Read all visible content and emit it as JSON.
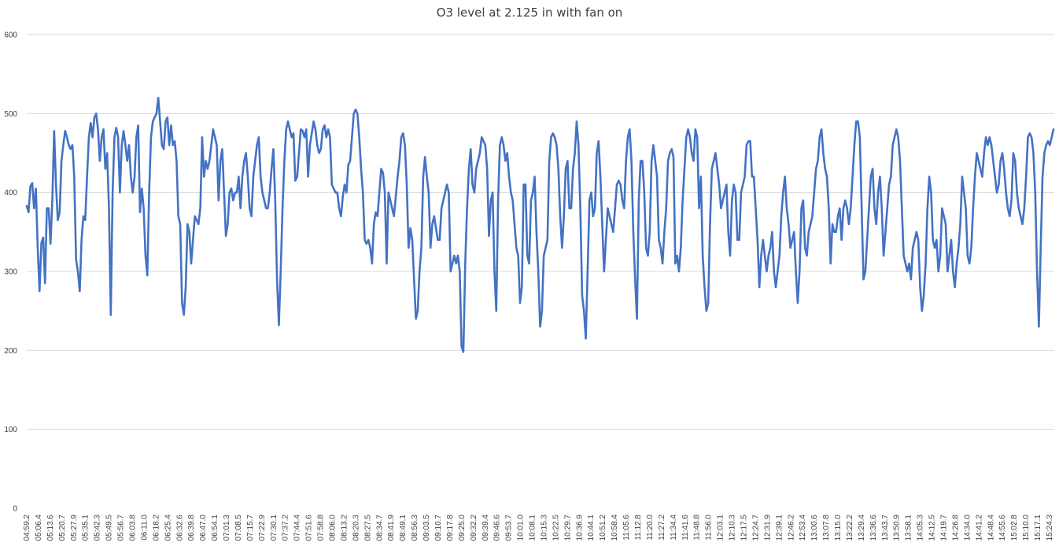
{
  "chart_data": {
    "type": "line",
    "title": "O3 level at 2.125 in with fan on",
    "ylim": [
      0,
      600
    ],
    "y_ticks": [
      "0",
      "100",
      "200",
      "300",
      "400",
      "500",
      "600"
    ],
    "grid": "horizontal",
    "legend": "none",
    "colors": {
      "series": "#4472c4",
      "grid": "#d9d9d9",
      "text": "#404040"
    },
    "x_tick_labels": [
      "04:59.2",
      "05:06.4",
      "05:13.6",
      "05:20.7",
      "05:27.9",
      "05:35.1",
      "05:42.3",
      "05:49.5",
      "05:56.7",
      "06:03.8",
      "06:11.0",
      "06:18.2",
      "06:25.4",
      "06:32.6",
      "06:39.8",
      "06:47.0",
      "06:54.1",
      "07:01.3",
      "07:08.5",
      "07:15.7",
      "07:22.9",
      "07:30.1",
      "07:37.2",
      "07:44.4",
      "07:51.6",
      "07:58.8",
      "08:06.0",
      "08:13.2",
      "08:20.3",
      "08:27.5",
      "08:34.7",
      "08:41.9",
      "08:49.1",
      "08:56.3",
      "09:03.5",
      "09:10.7",
      "09:17.8",
      "09:25.0",
      "09:32.2",
      "09:39.4",
      "09:46.6",
      "09:53.7",
      "10:01.0",
      "10:08.1",
      "10:15.3",
      "10:22.5",
      "10:29.7",
      "10:36.9",
      "10:44.1",
      "10:51.2",
      "10:58.4",
      "11:05.6",
      "11:12.8",
      "11:20.0",
      "11:27.2",
      "11:34.4",
      "11:41.6",
      "11:48.8",
      "11:56.0",
      "12:03.1",
      "12:10.3",
      "12:17.5",
      "12:24.7",
      "12:31.9",
      "12:39.1",
      "12:46.2",
      "12:53.4",
      "13:00.6",
      "13:07.8",
      "13:15.0",
      "13:22.2",
      "13:29.4",
      "13:36.6",
      "13:43.7",
      "13:50.9",
      "13:58.1",
      "14:05.3",
      "14:12.5",
      "14:19.7",
      "14:26.8",
      "14:34.0",
      "14:41.2",
      "14:48.4",
      "14:55.6",
      "15:02.8",
      "15:10.0",
      "15:17.1",
      "15:24.3"
    ],
    "series": [
      {
        "values": [
          383,
          375,
          408,
          412,
          380,
          405,
          330,
          275,
          336,
          343,
          285,
          380,
          380,
          335,
          390,
          478,
          410,
          365,
          375,
          440,
          460,
          478,
          470,
          460,
          455,
          460,
          420,
          315,
          300,
          275,
          340,
          370,
          365,
          420,
          470,
          488,
          470,
          495,
          500,
          480,
          440,
          470,
          480,
          430,
          450,
          380,
          245,
          400,
          470,
          482,
          470,
          400,
          460,
          478,
          460,
          440,
          460,
          420,
          400,
          420,
          470,
          485,
          375,
          405,
          380,
          320,
          295,
          400,
          470,
          490,
          495,
          500,
          520,
          490,
          460,
          455,
          490,
          495,
          460,
          485,
          460,
          465,
          440,
          370,
          360,
          260,
          245,
          280,
          360,
          350,
          310,
          340,
          370,
          365,
          360,
          380,
          470,
          420,
          440,
          430,
          440,
          460,
          480,
          470,
          460,
          390,
          440,
          455,
          400,
          345,
          360,
          400,
          405,
          390,
          400,
          400,
          420,
          380,
          420,
          440,
          450,
          420,
          380,
          370,
          420,
          440,
          460,
          470,
          420,
          400,
          390,
          380,
          380,
          400,
          430,
          455,
          390,
          290,
          232,
          300,
          380,
          440,
          480,
          490,
          480,
          470,
          475,
          415,
          420,
          450,
          480,
          478,
          470,
          480,
          420,
          460,
          475,
          490,
          480,
          460,
          450,
          455,
          480,
          485,
          470,
          480,
          470,
          410,
          405,
          400,
          400,
          380,
          370,
          395,
          410,
          400,
          435,
          440,
          470,
          500,
          505,
          500,
          470,
          430,
          400,
          340,
          335,
          340,
          330,
          310,
          360,
          375,
          370,
          400,
          430,
          425,
          400,
          310,
          400,
          390,
          380,
          370,
          395,
          420,
          440,
          470,
          475,
          460,
          410,
          330,
          355,
          340,
          290,
          240,
          250,
          300,
          330,
          420,
          445,
          420,
          400,
          330,
          360,
          370,
          355,
          340,
          340,
          380,
          390,
          400,
          410,
          400,
          300,
          310,
          320,
          310,
          320,
          300,
          205,
          198,
          310,
          380,
          430,
          455,
          410,
          400,
          430,
          440,
          450,
          470,
          465,
          460,
          430,
          345,
          390,
          400,
          300,
          250,
          390,
          460,
          470,
          460,
          440,
          450,
          420,
          400,
          390,
          360,
          330,
          320,
          260,
          280,
          410,
          410,
          320,
          310,
          390,
          400,
          420,
          350,
          300,
          230,
          250,
          320,
          330,
          340,
          440,
          470,
          475,
          470,
          460,
          430,
          370,
          330,
          370,
          430,
          440,
          380,
          380,
          430,
          450,
          490,
          460,
          380,
          270,
          250,
          215,
          300,
          390,
          400,
          370,
          380,
          450,
          465,
          420,
          360,
          300,
          340,
          380,
          370,
          360,
          350,
          380,
          410,
          415,
          410,
          390,
          380,
          440,
          470,
          480,
          440,
          350,
          290,
          240,
          390,
          440,
          440,
          400,
          330,
          320,
          350,
          440,
          460,
          440,
          420,
          340,
          330,
          310,
          350,
          380,
          440,
          450,
          455,
          445,
          310,
          320,
          300,
          330,
          390,
          430,
          470,
          480,
          470,
          450,
          440,
          480,
          470,
          380,
          420,
          320,
          280,
          250,
          260,
          360,
          430,
          440,
          450,
          430,
          410,
          380,
          390,
          400,
          410,
          350,
          320,
          390,
          410,
          400,
          340,
          340,
          400,
          410,
          420,
          460,
          465,
          465,
          420,
          420,
          380,
          340,
          280,
          320,
          340,
          320,
          300,
          320,
          330,
          350,
          300,
          280,
          300,
          320,
          370,
          400,
          420,
          380,
          360,
          330,
          340,
          350,
          300,
          260,
          300,
          380,
          390,
          330,
          320,
          350,
          360,
          370,
          400,
          430,
          440,
          470,
          480,
          450,
          430,
          420,
          380,
          310,
          360,
          350,
          350,
          370,
          380,
          340,
          380,
          390,
          380,
          360,
          380,
          420,
          460,
          490,
          490,
          470,
          380,
          290,
          300,
          340,
          380,
          420,
          430,
          380,
          360,
          400,
          420,
          380,
          320,
          350,
          380,
          410,
          420,
          460,
          470,
          480,
          470,
          440,
          380,
          320,
          310,
          300,
          310,
          290,
          330,
          340,
          350,
          340,
          280,
          250,
          270,
          310,
          380,
          420,
          400,
          340,
          330,
          340,
          300,
          320,
          380,
          370,
          360,
          300,
          320,
          340,
          300,
          280,
          310,
          330,
          360,
          420,
          400,
          380,
          320,
          310,
          330,
          380,
          420,
          450,
          440,
          430,
          420,
          450,
          470,
          460,
          470,
          460,
          440,
          420,
          400,
          410,
          440,
          450,
          430,
          400,
          380,
          370,
          390,
          450,
          440,
          400,
          380,
          370,
          360,
          380,
          420,
          470,
          475,
          470,
          450,
          400,
          300,
          230,
          330,
          420,
          450,
          460,
          465,
          460,
          470,
          480
        ]
      }
    ]
  }
}
